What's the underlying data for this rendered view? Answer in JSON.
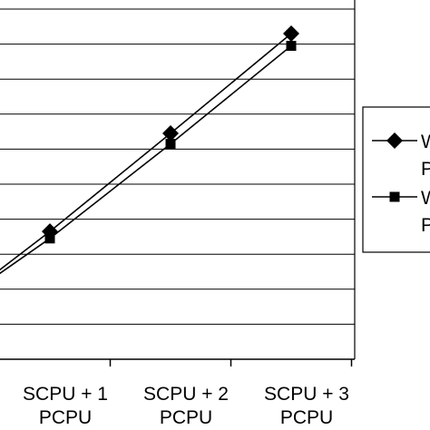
{
  "chart_data": {
    "type": "line",
    "categories": [
      "SCPU + 1\nPCPU",
      "SCPU + 2\nPCPU",
      "SCPU + 3\nPCPU"
    ],
    "ylim": [
      0,
      10
    ],
    "grid": true,
    "legend_position": "right",
    "series": [
      {
        "name": "W\nP",
        "marker": "diamond",
        "color": "#000000",
        "values": [
          3.65,
          6.45,
          9.3
        ],
        "extrapolated_start": 2.5
      },
      {
        "name": "W\nP",
        "marker": "square",
        "color": "#000000",
        "values": [
          3.45,
          6.15,
          8.95
        ],
        "extrapolated_start": 2.4
      }
    ]
  }
}
